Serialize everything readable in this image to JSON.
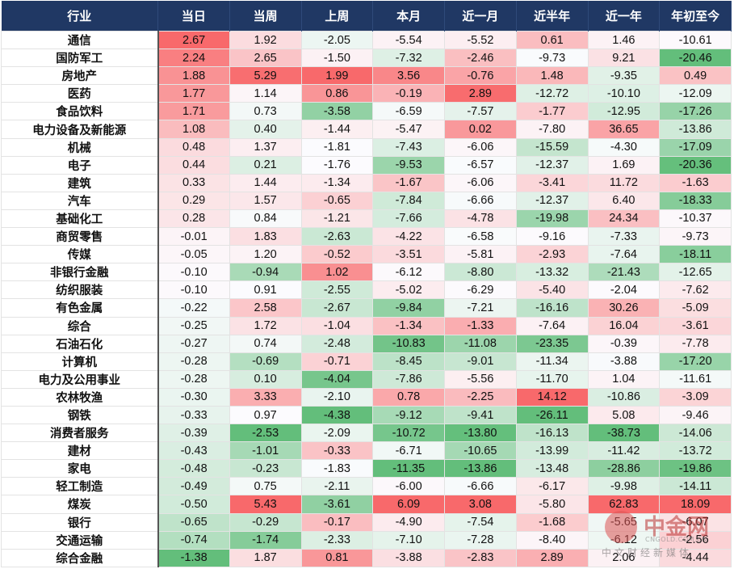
{
  "table": {
    "header": [
      "行业",
      "当日",
      "当周",
      "上周",
      "本月",
      "近一月",
      "近半年",
      "近一年",
      "年初至今"
    ],
    "rows": [
      [
        "通信",
        "2.67",
        "1.92",
        "-2.05",
        "-5.54",
        "-5.52",
        "0.61",
        "1.46",
        "-10.61"
      ],
      [
        "国防军工",
        "2.24",
        "2.65",
        "-1.50",
        "-7.32",
        "-2.46",
        "-9.73",
        "9.21",
        "-20.46"
      ],
      [
        "房地产",
        "1.88",
        "5.29",
        "1.99",
        "3.56",
        "-0.76",
        "1.48",
        "-9.35",
        "0.49"
      ],
      [
        "医药",
        "1.77",
        "1.14",
        "0.86",
        "-0.19",
        "2.89",
        "-12.72",
        "-10.10",
        "-12.09"
      ],
      [
        "食品饮料",
        "1.71",
        "0.73",
        "-3.58",
        "-6.59",
        "-7.57",
        "-1.77",
        "-12.95",
        "-17.26"
      ],
      [
        "电力设备及新能源",
        "1.08",
        "0.40",
        "-1.44",
        "-5.47",
        "0.02",
        "-7.80",
        "36.65",
        "-13.86"
      ],
      [
        "机械",
        "0.48",
        "1.37",
        "-1.81",
        "-7.43",
        "-6.06",
        "-15.59",
        "-4.30",
        "-17.09"
      ],
      [
        "电子",
        "0.44",
        "0.21",
        "-1.76",
        "-9.53",
        "-6.57",
        "-12.37",
        "1.69",
        "-20.36"
      ],
      [
        "建筑",
        "0.33",
        "1.44",
        "-1.34",
        "-1.67",
        "-6.06",
        "-3.41",
        "11.72",
        "-1.63"
      ],
      [
        "汽车",
        "0.29",
        "1.57",
        "-0.65",
        "-7.84",
        "-6.66",
        "-12.37",
        "6.40",
        "-18.33"
      ],
      [
        "基础化工",
        "0.28",
        "0.84",
        "-1.21",
        "-7.66",
        "-4.78",
        "-19.98",
        "24.34",
        "-10.37"
      ],
      [
        "商贸零售",
        "-0.01",
        "1.83",
        "-2.63",
        "-4.22",
        "-6.58",
        "-9.16",
        "-7.33",
        "-9.73"
      ],
      [
        "传媒",
        "-0.05",
        "1.20",
        "-0.52",
        "-3.51",
        "-5.81",
        "-2.93",
        "-7.64",
        "-18.11"
      ],
      [
        "非银行金融",
        "-0.10",
        "-0.94",
        "1.02",
        "-6.12",
        "-8.80",
        "-13.32",
        "-21.43",
        "-12.65"
      ],
      [
        "纺织服装",
        "-0.10",
        "0.91",
        "-2.55",
        "-5.02",
        "-6.29",
        "-5.40",
        "-2.04",
        "-7.62"
      ],
      [
        "有色金属",
        "-0.22",
        "2.58",
        "-2.67",
        "-9.84",
        "-7.21",
        "-16.16",
        "30.26",
        "-5.09"
      ],
      [
        "综合",
        "-0.25",
        "1.72",
        "-1.04",
        "-1.34",
        "-1.33",
        "-7.64",
        "16.04",
        "-3.61"
      ],
      [
        "石油石化",
        "-0.27",
        "0.74",
        "-2.48",
        "-10.83",
        "-11.08",
        "-23.35",
        "-0.39",
        "-7.78"
      ],
      [
        "计算机",
        "-0.28",
        "-0.69",
        "-0.71",
        "-8.45",
        "-9.01",
        "-11.34",
        "-3.88",
        "-17.20"
      ],
      [
        "电力及公用事业",
        "-0.28",
        "0.10",
        "-4.04",
        "-7.86",
        "-5.56",
        "-11.70",
        "1.04",
        "-11.61"
      ],
      [
        "农林牧渔",
        "-0.30",
        "3.33",
        "-2.10",
        "0.78",
        "-2.25",
        "14.12",
        "-10.86",
        "-3.09"
      ],
      [
        "钢铁",
        "-0.33",
        "0.97",
        "-4.38",
        "-9.12",
        "-9.41",
        "-26.11",
        "5.08",
        "-9.46"
      ],
      [
        "消费者服务",
        "-0.39",
        "-2.53",
        "-2.09",
        "-10.72",
        "-13.80",
        "-16.13",
        "-38.73",
        "-14.06"
      ],
      [
        "建材",
        "-0.43",
        "-1.01",
        "-0.33",
        "-6.71",
        "-10.65",
        "-13.99",
        "-11.42",
        "-13.72"
      ],
      [
        "家电",
        "-0.48",
        "-0.23",
        "-1.83",
        "-11.35",
        "-13.86",
        "-13.48",
        "-28.86",
        "-19.86"
      ],
      [
        "轻工制造",
        "-0.49",
        "0.75",
        "-2.11",
        "-6.00",
        "-6.66",
        "-6.17",
        "-9.98",
        "-14.11"
      ],
      [
        "煤炭",
        "-0.50",
        "5.43",
        "-3.61",
        "6.09",
        "3.08",
        "-5.80",
        "62.83",
        "18.09"
      ],
      [
        "银行",
        "-0.65",
        "-0.29",
        "-0.17",
        "-4.90",
        "-7.54",
        "-1.68",
        "-5.65",
        "-6.07"
      ],
      [
        "交通运输",
        "-0.74",
        "-1.74",
        "-2.33",
        "-7.10",
        "-7.28",
        "-8.40",
        "-6.12",
        "-2.56"
      ],
      [
        "综合金融",
        "-1.38",
        "1.87",
        "0.81",
        "-3.88",
        "-2.83",
        "2.89",
        "2.06",
        "-4.44"
      ]
    ]
  },
  "watermark": {
    "logo": "中金网",
    "domain": "CNGOLD.COM.CN",
    "slogan": "中文财经新媒体"
  }
}
